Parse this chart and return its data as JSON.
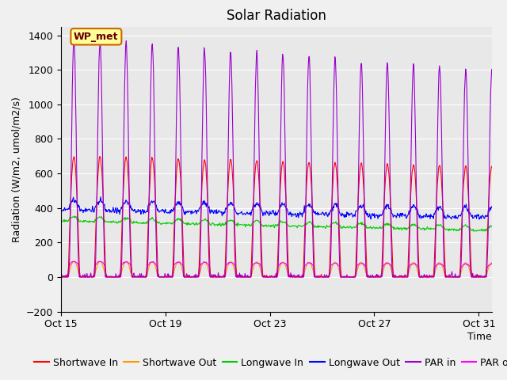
{
  "title": "Solar Radiation",
  "ylabel": "Radiation (W/m2, umol/m2/s)",
  "xlabel": "Time",
  "ylim": [
    -200,
    1450
  ],
  "yticks": [
    -200,
    0,
    200,
    400,
    600,
    800,
    1000,
    1200,
    1400
  ],
  "num_days": 17,
  "xtick_days": [
    15,
    19,
    23,
    27,
    31
  ],
  "xtick_labels": [
    "Oct 15",
    "Oct 19",
    "Oct 23",
    "Oct 27",
    "Oct 31"
  ],
  "legend_labels": [
    "Shortwave In",
    "Shortwave Out",
    "Longwave In",
    "Longwave Out",
    "PAR in",
    "PAR out"
  ],
  "legend_colors": [
    "#ff0000",
    "#ff9900",
    "#00cc00",
    "#0000ff",
    "#9900cc",
    "#ff00ff"
  ],
  "annotation_text": "WP_met",
  "annotation_bg": "#ffff99",
  "annotation_border": "#cc6600",
  "plot_bg": "#e8e8e8",
  "fig_bg": "#f0f0f0",
  "grid_color": "#ffffff",
  "title_fontsize": 12,
  "axis_fontsize": 9,
  "tick_fontsize": 9,
  "legend_fontsize": 9
}
